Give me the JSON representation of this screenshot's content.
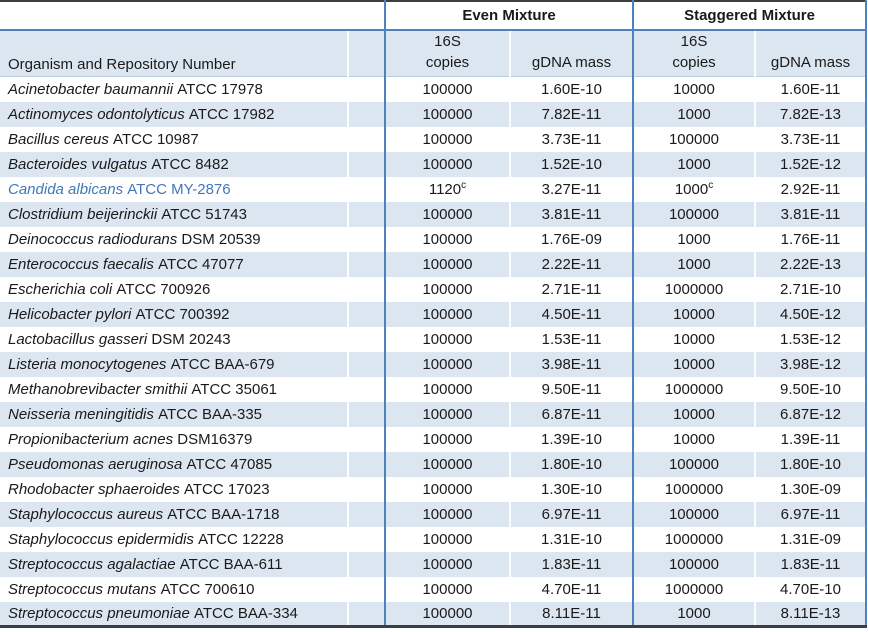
{
  "table": {
    "organism_header": "Organism and Repository Number",
    "group_headers": [
      "Even Mixture",
      "Staggered Mixture"
    ],
    "sub_headers": {
      "copies_line1": "16S",
      "copies_line2": "copies",
      "gdna": "gDNA mass"
    },
    "rows": [
      {
        "organism": "Acinetobacter baumannii",
        "repository": "ATCC 17978",
        "even": {
          "copies": "100000",
          "gdna": "1.60E-10"
        },
        "staggered": {
          "copies": "10000",
          "gdna": "1.60E-11"
        }
      },
      {
        "organism": "Actinomyces odontolyticus",
        "repository": "ATCC 17982",
        "even": {
          "copies": "100000",
          "gdna": "7.82E-11"
        },
        "staggered": {
          "copies": "1000",
          "gdna": "7.82E-13"
        }
      },
      {
        "organism": "Bacillus cereus",
        "repository": "ATCC 10987",
        "even": {
          "copies": "100000",
          "gdna": "3.73E-11"
        },
        "staggered": {
          "copies": "100000",
          "gdna": "3.73E-11"
        }
      },
      {
        "organism": "Bacteroides vulgatus",
        "repository": "ATCC 8482",
        "even": {
          "copies": "100000",
          "gdna": "1.52E-10"
        },
        "staggered": {
          "copies": "1000",
          "gdna": "1.52E-12"
        }
      },
      {
        "organism": "Candida albicans",
        "repository": "ATCC MY-2876",
        "highlight": true,
        "even": {
          "copies": "1120",
          "copies_note": "c",
          "gdna": "3.27E-11"
        },
        "staggered": {
          "copies": "1000",
          "copies_note": "c",
          "gdna": "2.92E-11"
        }
      },
      {
        "organism": "Clostridium beijerinckii",
        "repository": "ATCC 51743",
        "even": {
          "copies": "100000",
          "gdna": "3.81E-11"
        },
        "staggered": {
          "copies": "100000",
          "gdna": "3.81E-11"
        }
      },
      {
        "organism": "Deinococcus radiodurans",
        "repository": "DSM 20539",
        "even": {
          "copies": "100000",
          "gdna": "1.76E-09"
        },
        "staggered": {
          "copies": "1000",
          "gdna": "1.76E-11"
        }
      },
      {
        "organism": "Enterococcus faecalis",
        "repository": "ATCC 47077",
        "even": {
          "copies": "100000",
          "gdna": "2.22E-11"
        },
        "staggered": {
          "copies": "1000",
          "gdna": "2.22E-13"
        }
      },
      {
        "organism": "Escherichia coli",
        "repository": "ATCC 700926",
        "even": {
          "copies": "100000",
          "gdna": "2.71E-11"
        },
        "staggered": {
          "copies": "1000000",
          "gdna": "2.71E-10"
        }
      },
      {
        "organism": "Helicobacter pylori",
        "repository": "ATCC 700392",
        "even": {
          "copies": "100000",
          "gdna": "4.50E-11"
        },
        "staggered": {
          "copies": "10000",
          "gdna": "4.50E-12"
        }
      },
      {
        "organism": "Lactobacillus gasseri",
        "repository": "DSM 20243",
        "even": {
          "copies": "100000",
          "gdna": "1.53E-11"
        },
        "staggered": {
          "copies": "10000",
          "gdna": "1.53E-12"
        }
      },
      {
        "organism": "Listeria monocytogenes",
        "repository": "ATCC BAA-679",
        "even": {
          "copies": "100000",
          "gdna": "3.98E-11"
        },
        "staggered": {
          "copies": "10000",
          "gdna": "3.98E-12"
        }
      },
      {
        "organism": "Methanobrevibacter smithii",
        "repository": "ATCC 35061",
        "even": {
          "copies": "100000",
          "gdna": "9.50E-11"
        },
        "staggered": {
          "copies": "1000000",
          "gdna": "9.50E-10"
        }
      },
      {
        "organism": "Neisseria meningitidis",
        "repository": "ATCC BAA-335",
        "even": {
          "copies": "100000",
          "gdna": "6.87E-11"
        },
        "staggered": {
          "copies": "10000",
          "gdna": "6.87E-12"
        }
      },
      {
        "organism": "Propionibacterium acnes",
        "repository": "DSM16379",
        "even": {
          "copies": "100000",
          "gdna": "1.39E-10"
        },
        "staggered": {
          "copies": "10000",
          "gdna": "1.39E-11"
        }
      },
      {
        "organism": "Pseudomonas aeruginosa",
        "repository": "ATCC 47085",
        "even": {
          "copies": "100000",
          "gdna": "1.80E-10"
        },
        "staggered": {
          "copies": "100000",
          "gdna": "1.80E-10"
        }
      },
      {
        "organism": "Rhodobacter sphaeroides",
        "repository": "ATCC 17023",
        "even": {
          "copies": "100000",
          "gdna": "1.30E-10"
        },
        "staggered": {
          "copies": "1000000",
          "gdna": "1.30E-09"
        }
      },
      {
        "organism": "Staphylococcus aureus",
        "repository": "ATCC BAA-1718",
        "even": {
          "copies": "100000",
          "gdna": "6.97E-11"
        },
        "staggered": {
          "copies": "100000",
          "gdna": "6.97E-11"
        }
      },
      {
        "organism": "Staphylococcus epidermidis",
        "repository": "ATCC 12228",
        "even": {
          "copies": "100000",
          "gdna": "1.31E-10"
        },
        "staggered": {
          "copies": "1000000",
          "gdna": "1.31E-09"
        }
      },
      {
        "organism": "Streptococcus agalactiae",
        "repository": "ATCC BAA-611",
        "even": {
          "copies": "100000",
          "gdna": "1.83E-11"
        },
        "staggered": {
          "copies": "100000",
          "gdna": "1.83E-11"
        }
      },
      {
        "organism": "Streptococcus mutans",
        "repository": "ATCC 700610",
        "even": {
          "copies": "100000",
          "gdna": "4.70E-11"
        },
        "staggered": {
          "copies": "1000000",
          "gdna": "4.70E-10"
        }
      },
      {
        "organism": "Streptococcus pneumoniae",
        "repository": "ATCC BAA-334",
        "even": {
          "copies": "100000",
          "gdna": "8.11E-11"
        },
        "staggered": {
          "copies": "1000",
          "gdna": "8.11E-13"
        }
      }
    ]
  },
  "colors": {
    "stripe": "#DCE6F1",
    "border_blue": "#4F81BD",
    "border_dark": "#3f3f3f",
    "highlight_text": "#4277B8"
  }
}
